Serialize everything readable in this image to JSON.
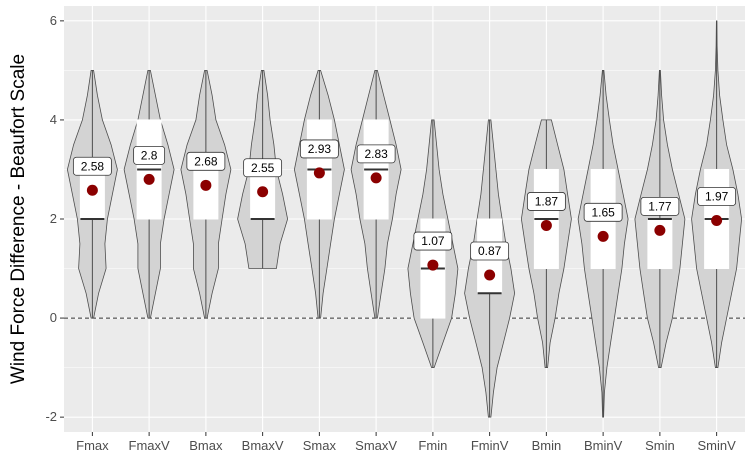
{
  "chart_data": {
    "type": "violin",
    "title": "",
    "xlabel": "",
    "ylabel": "Wind Force Difference - Beaufort Scale",
    "ylim": [
      -2.3,
      6.3
    ],
    "yticks": [
      -2,
      0,
      2,
      4,
      6
    ],
    "ytick_labels": [
      "-2",
      "0",
      "2",
      "4",
      "6"
    ],
    "grid": true,
    "reference_line": {
      "y": 0,
      "style": "dashed"
    },
    "colors": {
      "panel": "#ebebeb",
      "gridline": "#ffffff",
      "violin_fill": "#d3d3d3",
      "violin_stroke": "#4d4d4d",
      "box_fill": "#ffffff",
      "mean_point": "#8b0000"
    },
    "categories": [
      {
        "name": "Fmax",
        "mean": 2.58,
        "label": "2.58",
        "box": [
          2.0,
          2.0,
          3.0
        ],
        "range": [
          0,
          5
        ],
        "profile": [
          [
            0,
            0.05
          ],
          [
            0.5,
            0.25
          ],
          [
            1,
            0.55
          ],
          [
            1.5,
            0.5
          ],
          [
            2,
            0.6
          ],
          [
            2.5,
            0.8
          ],
          [
            3,
            1.0
          ],
          [
            3.5,
            0.75
          ],
          [
            4,
            0.4
          ],
          [
            4.5,
            0.2
          ],
          [
            5,
            0.05
          ]
        ]
      },
      {
        "name": "FmaxV",
        "mean": 2.8,
        "label": "2.8",
        "box": [
          2.0,
          3.0,
          4.0
        ],
        "range": [
          0,
          5
        ],
        "profile": [
          [
            0,
            0.05
          ],
          [
            0.5,
            0.25
          ],
          [
            1,
            0.45
          ],
          [
            1.5,
            0.45
          ],
          [
            2,
            0.6
          ],
          [
            2.5,
            0.8
          ],
          [
            3,
            1.0
          ],
          [
            3.5,
            0.75
          ],
          [
            4,
            0.45
          ],
          [
            4.5,
            0.25
          ],
          [
            5,
            0.05
          ]
        ]
      },
      {
        "name": "Bmax",
        "mean": 2.68,
        "label": "2.68",
        "box": [
          2.0,
          3.0,
          3.0
        ],
        "range": [
          0,
          5
        ],
        "profile": [
          [
            0,
            0.05
          ],
          [
            0.5,
            0.25
          ],
          [
            1,
            0.5
          ],
          [
            1.5,
            0.5
          ],
          [
            2,
            0.65
          ],
          [
            2.5,
            0.8
          ],
          [
            3,
            1.0
          ],
          [
            3.5,
            0.75
          ],
          [
            4,
            0.4
          ],
          [
            4.5,
            0.25
          ],
          [
            5,
            0.05
          ]
        ]
      },
      {
        "name": "BmaxV",
        "mean": 2.55,
        "label": "2.55",
        "box": [
          2.0,
          2.0,
          3.0
        ],
        "range": [
          1,
          5
        ],
        "profile": [
          [
            1,
            0.55
          ],
          [
            1.5,
            0.7
          ],
          [
            2,
            1.0
          ],
          [
            2.5,
            0.8
          ],
          [
            3,
            0.55
          ],
          [
            3.5,
            0.45
          ],
          [
            4,
            0.3
          ],
          [
            4.5,
            0.2
          ],
          [
            5,
            0.05
          ]
        ]
      },
      {
        "name": "Smax",
        "mean": 2.93,
        "label": "2.93",
        "box": [
          2.0,
          3.0,
          4.0
        ],
        "range": [
          0,
          5
        ],
        "profile": [
          [
            0,
            0.05
          ],
          [
            0.5,
            0.15
          ],
          [
            1,
            0.3
          ],
          [
            1.5,
            0.45
          ],
          [
            2,
            0.6
          ],
          [
            2.5,
            0.8
          ],
          [
            3,
            1.0
          ],
          [
            3.5,
            0.8
          ],
          [
            4,
            0.6
          ],
          [
            4.5,
            0.35
          ],
          [
            5,
            0.05
          ]
        ]
      },
      {
        "name": "SmaxV",
        "mean": 2.83,
        "label": "2.83",
        "box": [
          2.0,
          3.0,
          4.0
        ],
        "range": [
          0,
          5
        ],
        "profile": [
          [
            0,
            0.05
          ],
          [
            0.5,
            0.2
          ],
          [
            1,
            0.35
          ],
          [
            1.5,
            0.45
          ],
          [
            2,
            0.65
          ],
          [
            2.5,
            0.8
          ],
          [
            3,
            1.0
          ],
          [
            3.5,
            0.8
          ],
          [
            4,
            0.55
          ],
          [
            4.5,
            0.3
          ],
          [
            5,
            0.05
          ]
        ]
      },
      {
        "name": "Fmin",
        "mean": 1.07,
        "label": "1.07",
        "box": [
          0.0,
          1.0,
          2.0
        ],
        "range": [
          -1,
          4
        ],
        "profile": [
          [
            -1,
            0.05
          ],
          [
            -0.5,
            0.4
          ],
          [
            0,
            0.75
          ],
          [
            0.5,
            0.9
          ],
          [
            1,
            1.0
          ],
          [
            1.5,
            0.8
          ],
          [
            2,
            0.6
          ],
          [
            2.5,
            0.4
          ],
          [
            3,
            0.25
          ],
          [
            3.5,
            0.15
          ],
          [
            4,
            0.05
          ]
        ]
      },
      {
        "name": "FminV",
        "mean": 0.87,
        "label": "0.87",
        "box": [
          0.5,
          0.5,
          2.0
        ],
        "range": [
          -2,
          4
        ],
        "profile": [
          [
            -2,
            0.05
          ],
          [
            -1.5,
            0.15
          ],
          [
            -1,
            0.3
          ],
          [
            -0.5,
            0.55
          ],
          [
            0,
            0.8
          ],
          [
            0.5,
            1.0
          ],
          [
            1,
            0.85
          ],
          [
            1.5,
            0.65
          ],
          [
            2,
            0.5
          ],
          [
            2.5,
            0.35
          ],
          [
            3,
            0.25
          ],
          [
            3.5,
            0.15
          ],
          [
            4,
            0.05
          ]
        ]
      },
      {
        "name": "Bmin",
        "mean": 1.87,
        "label": "1.87",
        "box": [
          1.0,
          2.0,
          3.0
        ],
        "range": [
          -1,
          4
        ],
        "profile": [
          [
            -1,
            0.05
          ],
          [
            -0.5,
            0.15
          ],
          [
            0,
            0.35
          ],
          [
            0.5,
            0.5
          ],
          [
            1,
            0.7
          ],
          [
            1.5,
            0.85
          ],
          [
            2,
            1.0
          ],
          [
            2.5,
            0.85
          ],
          [
            3,
            0.7
          ],
          [
            3.5,
            0.45
          ],
          [
            4,
            0.2
          ]
        ]
      },
      {
        "name": "BminV",
        "mean": 1.65,
        "label": "1.65",
        "box": [
          1.0,
          2.0,
          3.0
        ],
        "range": [
          -2,
          5
        ],
        "profile": [
          [
            -2,
            0.02
          ],
          [
            -1.5,
            0.05
          ],
          [
            -1,
            0.15
          ],
          [
            -0.5,
            0.3
          ],
          [
            0,
            0.45
          ],
          [
            0.5,
            0.6
          ],
          [
            1,
            0.75
          ],
          [
            1.5,
            0.85
          ],
          [
            2,
            1.0
          ],
          [
            2.5,
            0.8
          ],
          [
            3,
            0.6
          ],
          [
            3.5,
            0.4
          ],
          [
            4,
            0.25
          ],
          [
            4.5,
            0.12
          ],
          [
            5,
            0.03
          ]
        ]
      },
      {
        "name": "Smin",
        "mean": 1.77,
        "label": "1.77",
        "box": [
          1.0,
          2.0,
          2.0
        ],
        "range": [
          -1,
          5
        ],
        "profile": [
          [
            -1,
            0.05
          ],
          [
            -0.5,
            0.25
          ],
          [
            0,
            0.5
          ],
          [
            0.5,
            0.65
          ],
          [
            1,
            0.8
          ],
          [
            1.5,
            0.9
          ],
          [
            2,
            1.0
          ],
          [
            2.5,
            0.75
          ],
          [
            3,
            0.5
          ],
          [
            3.5,
            0.3
          ],
          [
            4,
            0.15
          ],
          [
            4.5,
            0.07
          ],
          [
            5,
            0.02
          ]
        ]
      },
      {
        "name": "SminV",
        "mean": 1.97,
        "label": "1.97",
        "box": [
          1.0,
          2.0,
          3.0
        ],
        "range": [
          -1,
          6
        ],
        "profile": [
          [
            -1,
            0.05
          ],
          [
            -0.5,
            0.2
          ],
          [
            0,
            0.4
          ],
          [
            0.5,
            0.6
          ],
          [
            1,
            0.8
          ],
          [
            1.5,
            0.9
          ],
          [
            2,
            1.0
          ],
          [
            2.5,
            0.85
          ],
          [
            3,
            0.65
          ],
          [
            3.5,
            0.4
          ],
          [
            4,
            0.25
          ],
          [
            4.5,
            0.12
          ],
          [
            5,
            0.05
          ],
          [
            5.5,
            0.02
          ],
          [
            6,
            0.01
          ]
        ]
      }
    ]
  }
}
